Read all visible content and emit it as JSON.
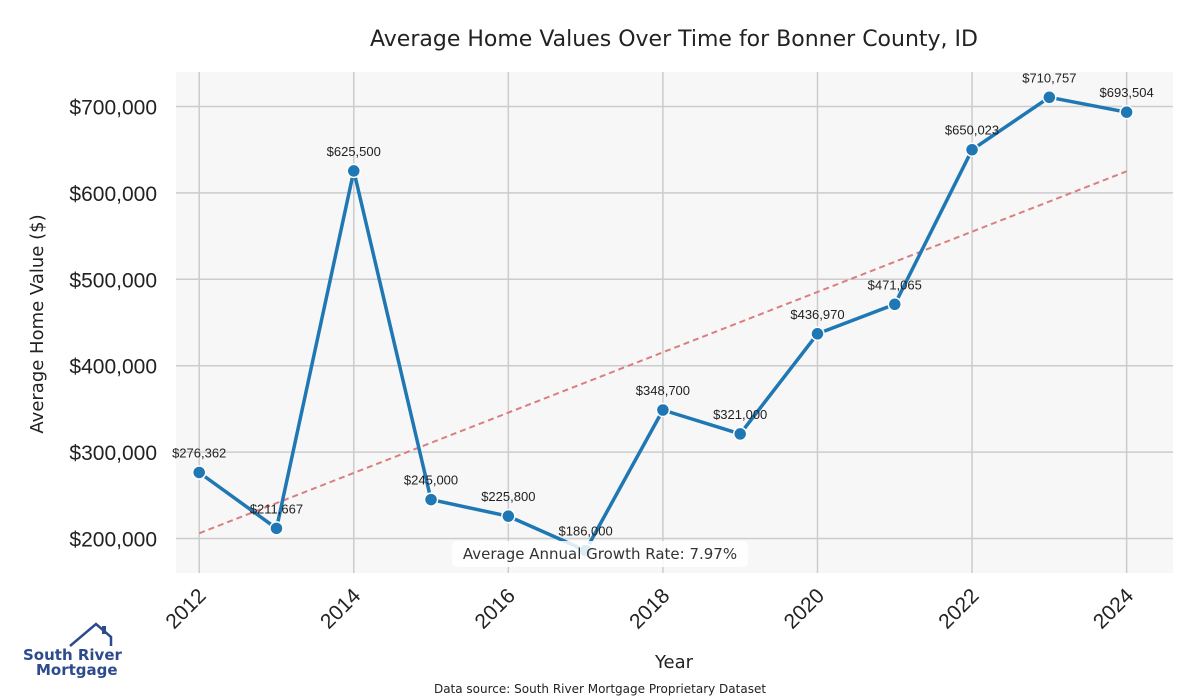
{
  "chart_data": {
    "type": "line",
    "title": "Average Home Values Over Time for Bonner County, ID",
    "xlabel": "Year",
    "ylabel": "Average Home Value ($)",
    "x": [
      2012,
      2013,
      2014,
      2015,
      2016,
      2017,
      2018,
      2019,
      2020,
      2021,
      2022,
      2023,
      2024
    ],
    "x_ticks": [
      2012,
      2014,
      2016,
      2018,
      2020,
      2022,
      2024
    ],
    "x_tick_labels": [
      "2012",
      "2014",
      "2016",
      "2018",
      "2020",
      "2022",
      "2024"
    ],
    "xlim": [
      2011.7,
      2024.6
    ],
    "ylim": [
      160000,
      740000
    ],
    "y_ticks": [
      200000,
      300000,
      400000,
      500000,
      600000,
      700000
    ],
    "y_tick_labels": [
      "$200,000",
      "$300,000",
      "$400,000",
      "$500,000",
      "$600,000",
      "$700,000"
    ],
    "series": [
      {
        "values": [
          276362,
          211667,
          625500,
          245000,
          225800,
          186000,
          348700,
          321000,
          436970,
          471065,
          650023,
          710757,
          693504
        ],
        "labels": [
          "$276,362",
          "$211,667",
          "$625,500",
          "$245,000",
          "$225,800",
          "$186,000",
          "$348,700",
          "$321,000",
          "$436,970",
          "$471,065",
          "$650,023",
          "$710,757",
          "$693,504"
        ],
        "color": "#1f77b4"
      }
    ],
    "trendline": {
      "x": [
        2012,
        2024
      ],
      "y": [
        206000,
        625000
      ],
      "color": "#d9807e",
      "style": "dashed"
    },
    "annotation": "Average Annual Growth Rate: 7.97%",
    "grid": true,
    "background": "#f7f7f7",
    "grid_color": "#cccccc"
  },
  "footer": {
    "source": "Data source: South River Mortgage Proprietary Dataset",
    "logo_line1": "South River",
    "logo_line2": "Mortgage",
    "logo_color": "#2c4a8c"
  }
}
